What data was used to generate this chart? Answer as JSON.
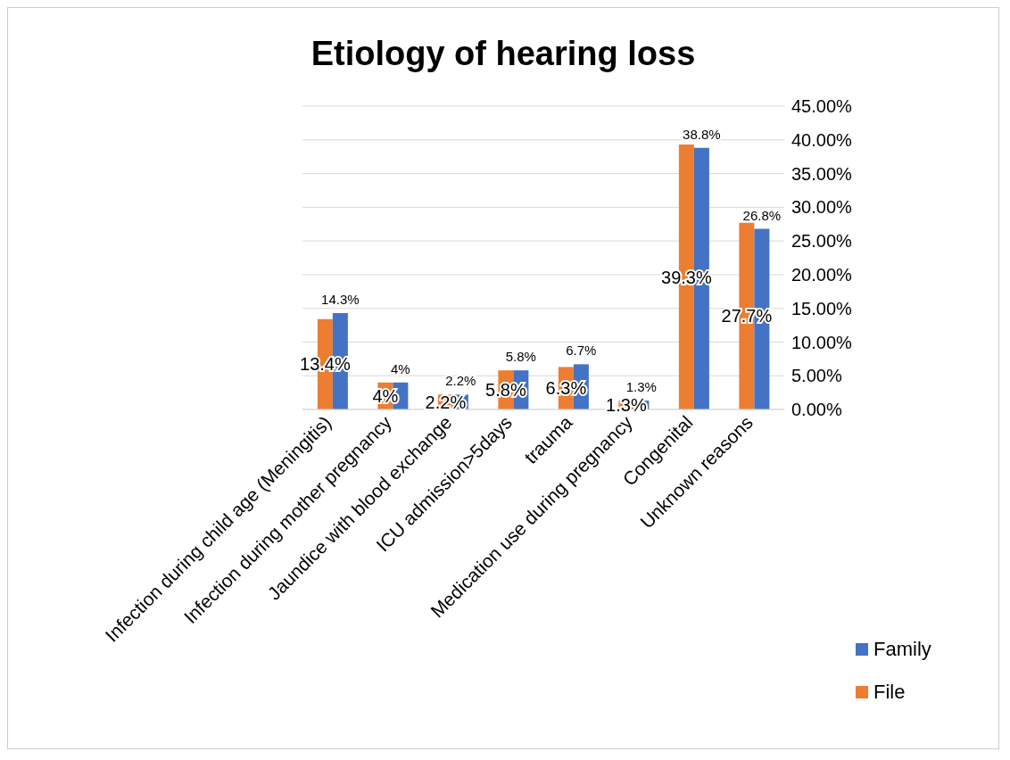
{
  "chart_data": {
    "type": "bar",
    "title": "Etiology of hearing loss",
    "categories": [
      "Infection during child age (Meningitis)",
      "Infection during mother pregnancy",
      "Jaundice with blood exchange",
      "ICU admission>5days",
      "trauma",
      "Medication use during pregnancy",
      "Congenital",
      "Unknown reasons"
    ],
    "series": [
      {
        "name": "File",
        "color": "#ed7d31",
        "values": [
          13.4,
          4,
          2.2,
          5.8,
          6.3,
          1.3,
          39.3,
          27.7
        ],
        "value_labels": [
          "13.4%",
          "4%",
          "2.2%",
          "5.8%",
          "6.3%",
          "1.3%",
          "39.3%",
          "27.7%"
        ]
      },
      {
        "name": "Family",
        "color": "#4472c4",
        "values": [
          14.3,
          4,
          2.2,
          5.8,
          6.7,
          1.3,
          38.8,
          26.8
        ],
        "value_labels": [
          "14.3%",
          "4%",
          "2.2%",
          "5.8%",
          "6.7%",
          "1.3%",
          "38.8%",
          "26.8%"
        ]
      }
    ],
    "ylim": [
      0,
      45
    ],
    "yticks": [
      {
        "value": 0,
        "label": "0.00%"
      },
      {
        "value": 5,
        "label": "5.00%"
      },
      {
        "value": 10,
        "label": "10.00%"
      },
      {
        "value": 15,
        "label": "15.00%"
      },
      {
        "value": 20,
        "label": "20.00%"
      },
      {
        "value": 25,
        "label": "25.00%"
      },
      {
        "value": 30,
        "label": "30.00%"
      },
      {
        "value": 35,
        "label": "35.00%"
      },
      {
        "value": 40,
        "label": "40.00%"
      },
      {
        "value": 45,
        "label": "45.00%"
      }
    ],
    "grid": "y",
    "legend": "right"
  }
}
